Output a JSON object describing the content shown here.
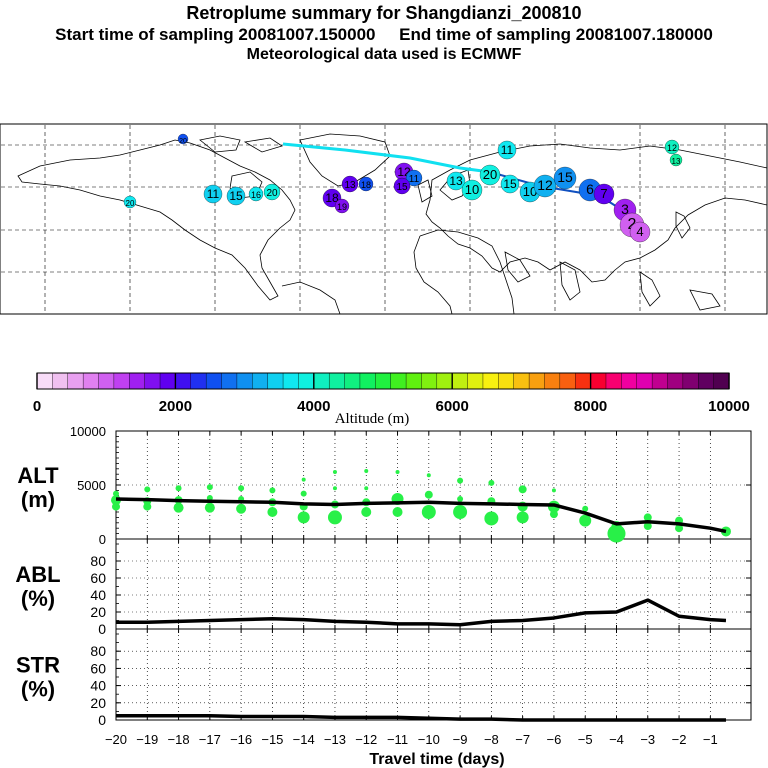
{
  "header": {
    "title": "Retroplume summary for Shangdianzi_200810",
    "start_label": "Start time of sampling 20081007.150000",
    "end_label": "End time of sampling 20081007.180000",
    "met_label": "Meteorological data used is ECMWF"
  },
  "colorbar": {
    "ticks": [
      "0",
      "2000",
      "4000",
      "6000",
      "8000",
      "10000"
    ],
    "label": "Altitude (m)",
    "colors": [
      "#f8dcf8",
      "#f0c0f0",
      "#e8a0f0",
      "#e080f0",
      "#d060f0",
      "#c040f0",
      "#a020f0",
      "#8010f0",
      "#6000f0",
      "#4010f0",
      "#2030f0",
      "#1050f0",
      "#1070f0",
      "#1090f0",
      "#10b0f0",
      "#10d0f0",
      "#10e8f0",
      "#10f0e0",
      "#10f0c0",
      "#10f0a0",
      "#10f080",
      "#10f060",
      "#20f040",
      "#40f020",
      "#60f010",
      "#80f010",
      "#a0f010",
      "#c0f010",
      "#e0f010",
      "#f8f010",
      "#f8e010",
      "#f8c010",
      "#f8a010",
      "#f88010",
      "#f86010",
      "#f83010",
      "#f80030",
      "#f80070",
      "#f000a0",
      "#e000b0",
      "#c00090",
      "#a00080",
      "#800070",
      "#600060",
      "#500050"
    ]
  },
  "map_labels": [
    "20",
    "11",
    "15",
    "16",
    "20",
    "18",
    "19",
    "13",
    "18",
    "20",
    "12",
    "11",
    "15",
    "13",
    "10",
    "20",
    "15",
    "10",
    "12",
    "15",
    "6",
    "7",
    "3",
    "2",
    "4",
    "11",
    "12",
    "13"
  ],
  "chart_data": [
    {
      "type": "scatter+line",
      "panel": "ALT",
      "title": "ALT",
      "unit": "(m)",
      "ylim": [
        0,
        10000
      ],
      "yticks": [
        "0",
        "5000",
        "10000"
      ],
      "x": [
        -20,
        -19,
        -18,
        -17,
        -16,
        -15,
        -14,
        -13,
        -12,
        -11,
        -10,
        -9,
        -8,
        -7,
        -6,
        -5,
        -4,
        -3,
        -2,
        -1,
        -0.5
      ],
      "mean_line": [
        3700,
        3650,
        3550,
        3500,
        3450,
        3400,
        3250,
        3200,
        3300,
        3350,
        3400,
        3300,
        3250,
        3200,
        3150,
        2400,
        1400,
        1600,
        1400,
        1000,
        700
      ],
      "points": [
        {
          "x": -20,
          "y": 4200,
          "s": 3
        },
        {
          "x": -20,
          "y": 3600,
          "s": 5
        },
        {
          "x": -20,
          "y": 3000,
          "s": 4
        },
        {
          "x": -19,
          "y": 4600,
          "s": 3
        },
        {
          "x": -19,
          "y": 3500,
          "s": 4
        },
        {
          "x": -19,
          "y": 3000,
          "s": 4
        },
        {
          "x": -18,
          "y": 4700,
          "s": 3
        },
        {
          "x": -18,
          "y": 3600,
          "s": 4
        },
        {
          "x": -18,
          "y": 2900,
          "s": 5
        },
        {
          "x": -17,
          "y": 4800,
          "s": 3
        },
        {
          "x": -17,
          "y": 3800,
          "s": 3
        },
        {
          "x": -17,
          "y": 2900,
          "s": 5
        },
        {
          "x": -16,
          "y": 4700,
          "s": 3
        },
        {
          "x": -16,
          "y": 3700,
          "s": 3
        },
        {
          "x": -16,
          "y": 2800,
          "s": 5
        },
        {
          "x": -15,
          "y": 4500,
          "s": 3
        },
        {
          "x": -15,
          "y": 3400,
          "s": 4
        },
        {
          "x": -15,
          "y": 2500,
          "s": 5
        },
        {
          "x": -14,
          "y": 5500,
          "s": 2
        },
        {
          "x": -14,
          "y": 4200,
          "s": 3
        },
        {
          "x": -14,
          "y": 3000,
          "s": 4
        },
        {
          "x": -14,
          "y": 2000,
          "s": 6
        },
        {
          "x": -13,
          "y": 6200,
          "s": 2
        },
        {
          "x": -13,
          "y": 4700,
          "s": 2
        },
        {
          "x": -13,
          "y": 3200,
          "s": 4
        },
        {
          "x": -13,
          "y": 2000,
          "s": 7
        },
        {
          "x": -12,
          "y": 6300,
          "s": 2
        },
        {
          "x": -12,
          "y": 4700,
          "s": 2
        },
        {
          "x": -12,
          "y": 3400,
          "s": 4
        },
        {
          "x": -12,
          "y": 2500,
          "s": 5
        },
        {
          "x": -11,
          "y": 6200,
          "s": 2
        },
        {
          "x": -11,
          "y": 3700,
          "s": 6
        },
        {
          "x": -11,
          "y": 2500,
          "s": 5
        },
        {
          "x": -10,
          "y": 5900,
          "s": 2
        },
        {
          "x": -10,
          "y": 4100,
          "s": 4
        },
        {
          "x": -10,
          "y": 2500,
          "s": 7
        },
        {
          "x": -9,
          "y": 5400,
          "s": 3
        },
        {
          "x": -9,
          "y": 3700,
          "s": 3
        },
        {
          "x": -9,
          "y": 2500,
          "s": 7
        },
        {
          "x": -8,
          "y": 5200,
          "s": 3
        },
        {
          "x": -8,
          "y": 3500,
          "s": 4
        },
        {
          "x": -8,
          "y": 1900,
          "s": 7
        },
        {
          "x": -7,
          "y": 4600,
          "s": 4
        },
        {
          "x": -7,
          "y": 3000,
          "s": 5
        },
        {
          "x": -7,
          "y": 2000,
          "s": 6
        },
        {
          "x": -6,
          "y": 4500,
          "s": 2
        },
        {
          "x": -6,
          "y": 3000,
          "s": 6
        },
        {
          "x": -6,
          "y": 2300,
          "s": 4
        },
        {
          "x": -5,
          "y": 1700,
          "s": 6
        },
        {
          "x": -5,
          "y": 2800,
          "s": 3
        },
        {
          "x": -4,
          "y": 1200,
          "s": 5
        },
        {
          "x": -4,
          "y": 500,
          "s": 9
        },
        {
          "x": -3,
          "y": 2000,
          "s": 4
        },
        {
          "x": -3,
          "y": 1200,
          "s": 4
        },
        {
          "x": -2,
          "y": 1700,
          "s": 4
        },
        {
          "x": -2,
          "y": 1000,
          "s": 4
        },
        {
          "x": -0.5,
          "y": 700,
          "s": 5
        }
      ]
    },
    {
      "type": "line",
      "panel": "ABL",
      "title": "ABL",
      "unit": "(%)",
      "ylim": [
        0,
        100
      ],
      "yticks": [
        "0",
        "20",
        "40",
        "60",
        "80"
      ],
      "x": [
        -20,
        -19,
        -18,
        -17,
        -16,
        -15,
        -14,
        -13,
        -12,
        -11,
        -10,
        -9,
        -8,
        -7,
        -6,
        -5,
        -4,
        -3,
        -2,
        -1,
        -0.5
      ],
      "values": [
        8,
        8,
        9,
        10,
        11,
        12,
        11,
        9,
        8,
        6,
        6,
        5,
        9,
        10,
        13,
        19,
        20,
        34,
        15,
        11,
        10
      ]
    },
    {
      "type": "line",
      "panel": "STR",
      "title": "STR",
      "unit": "(%)",
      "ylim": [
        0,
        100
      ],
      "yticks": [
        "0",
        "20",
        "40",
        "60",
        "80"
      ],
      "x": [
        -20,
        -19,
        -18,
        -17,
        -16,
        -15,
        -14,
        -13,
        -12,
        -11,
        -10,
        -9,
        -8,
        -7,
        -6,
        -5,
        -4,
        -3,
        -2,
        -1,
        -0.5
      ],
      "values": [
        5,
        5,
        5,
        5,
        4,
        4,
        4,
        3,
        3,
        3,
        2,
        1,
        1,
        0,
        0,
        0,
        0,
        0,
        0,
        0,
        0
      ]
    }
  ],
  "x_axis": {
    "ticks": [
      "-20",
      "-19",
      "-18",
      "-17",
      "-16",
      "-15",
      "-14",
      "-13",
      "-12",
      "-11",
      "-10",
      "-9",
      "-8",
      "-7",
      "-6",
      "-5",
      "-4",
      "-3",
      "-2",
      "-1"
    ],
    "label": "Travel time (days)"
  }
}
